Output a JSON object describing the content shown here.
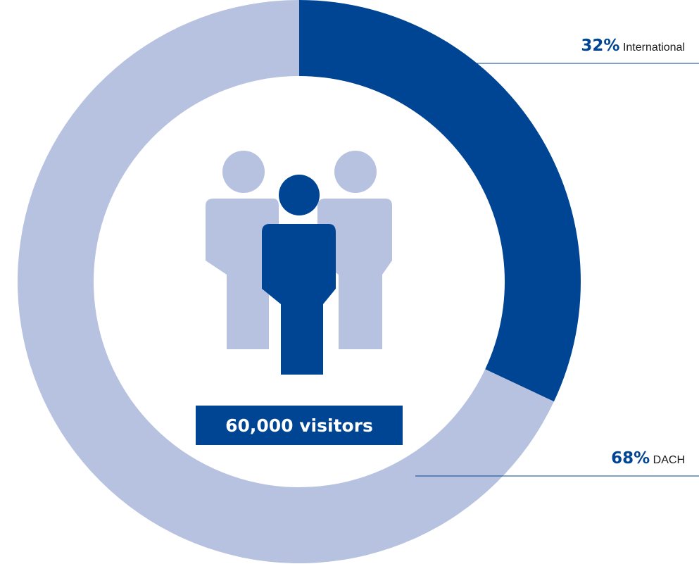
{
  "chart_data": {
    "type": "pie",
    "variant": "donut",
    "center_label": "60,000 visitors",
    "slices": [
      {
        "name": "International",
        "value": 32,
        "label": "32%"
      },
      {
        "name": "DACH",
        "value": 68,
        "label": "68%"
      }
    ],
    "start_angle": "12 o'clock",
    "direction": "clockwise"
  },
  "colors": {
    "primary": "#004494",
    "secondary": "#b6c2df",
    "background": "#ffffff"
  },
  "icons": {
    "center": "people-group-icon"
  }
}
